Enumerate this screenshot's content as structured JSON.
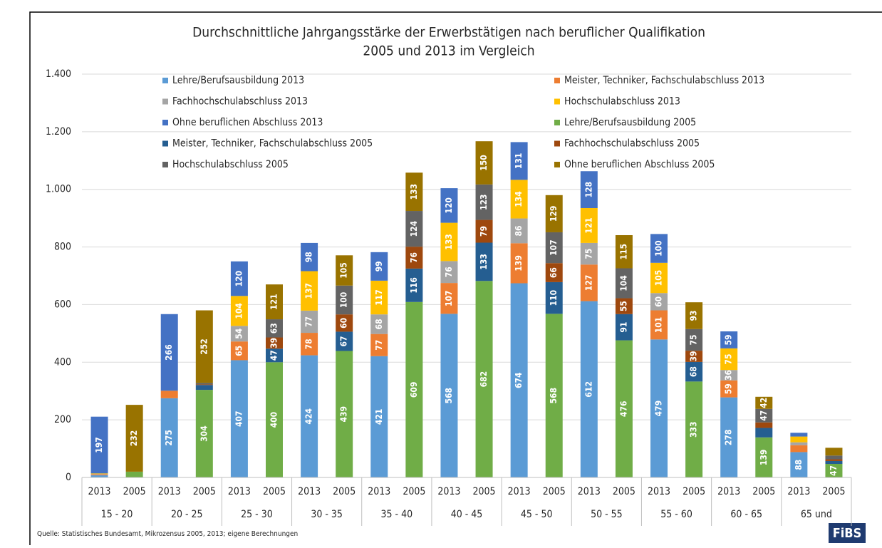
{
  "chart_data": {
    "type": "stacked_bar",
    "title": "Durchschnittliche Jahrgangsstärke der Erwerbstätigen nach beruflicher Qualifikation",
    "subtitle": "2005 und 2013 im Vergleich",
    "categories": [
      "2013",
      "2005",
      "2013",
      "2005",
      "2013",
      "2005",
      "2013",
      "2005",
      "2013",
      "2005",
      "2013",
      "2005",
      "2013",
      "2005",
      "2013",
      "2005",
      "2013",
      "2005",
      "2013",
      "2005",
      "2013",
      "2005"
    ],
    "groups": [
      "15 - 20",
      "20 - 25",
      "25 - 30",
      "30 - 35",
      "35 - 40",
      "40 - 45",
      "45 - 50",
      "50 - 55",
      "55 - 60",
      "60 - 65",
      "65 und"
    ],
    "series": [
      {
        "name": "Lehre/Berufsausbildung 2013",
        "color": "#5b9bd5",
        "values": [
          8,
          null,
          275,
          null,
          407,
          null,
          424,
          null,
          421,
          null,
          568,
          null,
          674,
          null,
          612,
          null,
          479,
          null,
          278,
          null,
          88,
          null
        ]
      },
      {
        "name": "Meister, Techniker, Fachschulabschluss 2013",
        "color": "#ed7d31",
        "values": [
          3,
          null,
          26,
          null,
          65,
          null,
          78,
          null,
          77,
          null,
          107,
          null,
          139,
          null,
          127,
          null,
          101,
          null,
          59,
          null,
          24,
          null
        ]
      },
      {
        "name": "Fachhochschulabschluss 2013",
        "color": "#a5a5a5",
        "values": [
          1,
          null,
          0,
          null,
          54,
          null,
          77,
          null,
          68,
          null,
          76,
          null,
          86,
          null,
          75,
          null,
          60,
          null,
          36,
          null,
          10,
          null
        ]
      },
      {
        "name": "Hochschulabschluss 2013",
        "color": "#ffc000",
        "values": [
          2,
          null,
          0,
          null,
          104,
          null,
          137,
          null,
          117,
          null,
          133,
          null,
          134,
          null,
          121,
          null,
          105,
          null,
          75,
          null,
          20,
          null
        ]
      },
      {
        "name": "Ohne beruflichen Abschluss 2013",
        "color": "#4472c4",
        "values": [
          197,
          null,
          266,
          null,
          120,
          null,
          98,
          null,
          99,
          null,
          120,
          null,
          131,
          null,
          128,
          null,
          100,
          null,
          59,
          null,
          13,
          null
        ]
      },
      {
        "name": "Lehre/Berufsausbildung 2005",
        "color": "#70ad47",
        "values": [
          null,
          20,
          null,
          304,
          null,
          400,
          null,
          439,
          null,
          609,
          null,
          682,
          null,
          568,
          null,
          476,
          null,
          333,
          null,
          139,
          null,
          47
        ]
      },
      {
        "name": "Meister, Techniker, Fachschulabschluss 2005",
        "color": "#255e91",
        "values": [
          null,
          0,
          null,
          17,
          null,
          47,
          null,
          67,
          null,
          116,
          null,
          133,
          null,
          110,
          null,
          91,
          null,
          68,
          null,
          33,
          null,
          10
        ]
      },
      {
        "name": "Fachhochschulabschluss 2005",
        "color": "#9e480e",
        "values": [
          null,
          0,
          null,
          2,
          null,
          39,
          null,
          60,
          null,
          76,
          null,
          79,
          null,
          66,
          null,
          55,
          null,
          39,
          null,
          19,
          null,
          6
        ]
      },
      {
        "name": "Hochschulabschluss 2005",
        "color": "#636363",
        "values": [
          null,
          0,
          null,
          5,
          null,
          63,
          null,
          100,
          null,
          124,
          null,
          123,
          null,
          107,
          null,
          104,
          null,
          75,
          null,
          47,
          null,
          13
        ]
      },
      {
        "name": "Ohne beruflichen Abschluss 2005",
        "color": "#997300",
        "values": [
          null,
          232,
          null,
          252,
          null,
          121,
          null,
          105,
          null,
          133,
          null,
          150,
          null,
          129,
          null,
          115,
          null,
          93,
          null,
          42,
          null,
          27
        ]
      }
    ],
    "ylim": [
      0,
      1400
    ],
    "yticks": [
      0,
      200,
      400,
      600,
      800,
      {
        "value": 1000,
        "label": "1.000"
      },
      {
        "value": 1200,
        "label": "1.200"
      },
      {
        "value": 1400,
        "label": "1.400"
      }
    ],
    "grid": true,
    "source": "Quelle: Statistisches Bundesamt, Mikrozensus 2005, 2013; eigene Berechnungen",
    "logo": "FiBS"
  }
}
